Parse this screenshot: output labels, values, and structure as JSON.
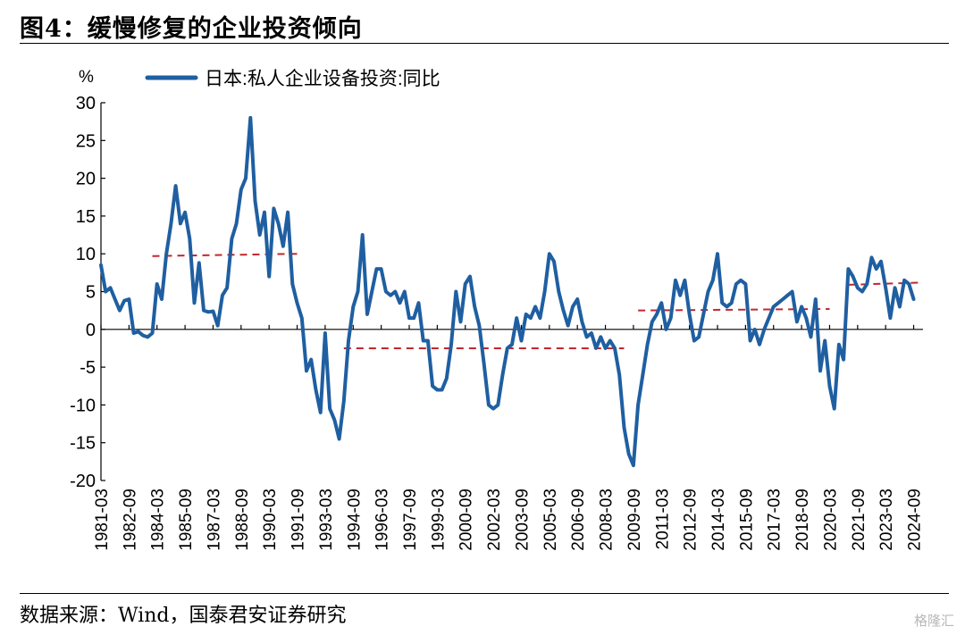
{
  "header": {
    "title": "图4：缓慢修复的企业投资倾向"
  },
  "footer": {
    "source": "数据来源：Wind，国泰君安证券研究"
  },
  "watermark": "格隆汇",
  "colors": {
    "series": "#1f5fa1",
    "trend": "#c0282d"
  },
  "chart_data": {
    "type": "line",
    "unit_label": "%",
    "legend": [
      "日本:私人企业设备投资:同比"
    ],
    "legend_position": "top-left",
    "grid": false,
    "ylim": [
      -20,
      30
    ],
    "yticks": [
      30,
      25,
      20,
      15,
      10,
      5,
      0,
      -5,
      -10,
      -15,
      -20
    ],
    "xlim": [
      1981.0,
      2025.0
    ],
    "xticks": [
      "1981-03",
      "1982-09",
      "1984-03",
      "1985-09",
      "1987-03",
      "1988-09",
      "1990-03",
      "1991-09",
      "1993-03",
      "1994-09",
      "1996-03",
      "1997-09",
      "1999-03",
      "2000-09",
      "2002-03",
      "2003-09",
      "2005-03",
      "2006-09",
      "2008-03",
      "2009-09",
      "2011-03",
      "2012-09",
      "2014-03",
      "2015-09",
      "2017-03",
      "2018-09",
      "2020-03",
      "2021-09",
      "2023-03",
      "2024-09"
    ],
    "series": [
      {
        "name": "日本:私人企业设备投资:同比",
        "points": [
          [
            1981.0,
            8.5
          ],
          [
            1981.25,
            5.0
          ],
          [
            1981.5,
            5.5
          ],
          [
            1981.75,
            4.0
          ],
          [
            1982.0,
            2.5
          ],
          [
            1982.25,
            3.8
          ],
          [
            1982.5,
            4.0
          ],
          [
            1982.75,
            -0.5
          ],
          [
            1983.0,
            -0.3
          ],
          [
            1983.25,
            -0.8
          ],
          [
            1983.5,
            -1.0
          ],
          [
            1983.75,
            -0.5
          ],
          [
            1984.0,
            6.0
          ],
          [
            1984.25,
            4.0
          ],
          [
            1984.5,
            10.0
          ],
          [
            1984.75,
            14.0
          ],
          [
            1985.0,
            19.0
          ],
          [
            1985.25,
            14.0
          ],
          [
            1985.5,
            15.5
          ],
          [
            1985.75,
            12.0
          ],
          [
            1986.0,
            3.5
          ],
          [
            1986.25,
            8.8
          ],
          [
            1986.5,
            2.5
          ],
          [
            1986.75,
            2.3
          ],
          [
            1987.0,
            2.4
          ],
          [
            1987.25,
            0.5
          ],
          [
            1987.5,
            4.5
          ],
          [
            1987.75,
            5.5
          ],
          [
            1988.0,
            12.0
          ],
          [
            1988.25,
            14.0
          ],
          [
            1988.5,
            18.5
          ],
          [
            1988.75,
            20.0
          ],
          [
            1989.0,
            28.0
          ],
          [
            1989.25,
            17.0
          ],
          [
            1989.5,
            12.5
          ],
          [
            1989.75,
            15.5
          ],
          [
            1990.0,
            7.0
          ],
          [
            1990.25,
            16.0
          ],
          [
            1990.5,
            14.0
          ],
          [
            1990.75,
            11.0
          ],
          [
            1991.0,
            15.5
          ],
          [
            1991.25,
            6.0
          ],
          [
            1991.5,
            3.5
          ],
          [
            1991.75,
            1.5
          ],
          [
            1992.0,
            -5.5
          ],
          [
            1992.25,
            -4.0
          ],
          [
            1992.5,
            -8.0
          ],
          [
            1992.75,
            -11.0
          ],
          [
            1993.0,
            -0.5
          ],
          [
            1993.25,
            -10.5
          ],
          [
            1993.5,
            -12.0
          ],
          [
            1993.75,
            -14.5
          ],
          [
            1994.0,
            -9.5
          ],
          [
            1994.25,
            -1.5
          ],
          [
            1994.5,
            3.0
          ],
          [
            1994.75,
            5.0
          ],
          [
            1995.0,
            12.5
          ],
          [
            1995.25,
            2.0
          ],
          [
            1995.5,
            5.0
          ],
          [
            1995.75,
            8.0
          ],
          [
            1996.0,
            8.0
          ],
          [
            1996.25,
            5.0
          ],
          [
            1996.5,
            4.5
          ],
          [
            1996.75,
            5.0
          ],
          [
            1997.0,
            3.5
          ],
          [
            1997.25,
            5.0
          ],
          [
            1997.5,
            1.5
          ],
          [
            1997.75,
            1.5
          ],
          [
            1998.0,
            3.5
          ],
          [
            1998.25,
            -1.5
          ],
          [
            1998.5,
            -1.5
          ],
          [
            1998.75,
            -7.5
          ],
          [
            1999.0,
            -8.0
          ],
          [
            1999.25,
            -8.0
          ],
          [
            1999.5,
            -6.5
          ],
          [
            1999.75,
            -2.0
          ],
          [
            2000.0,
            5.0
          ],
          [
            2000.25,
            1.0
          ],
          [
            2000.5,
            6.0
          ],
          [
            2000.75,
            7.0
          ],
          [
            2001.0,
            3.0
          ],
          [
            2001.25,
            0.5
          ],
          [
            2001.5,
            -4.5
          ],
          [
            2001.75,
            -10.0
          ],
          [
            2002.0,
            -10.5
          ],
          [
            2002.25,
            -10.0
          ],
          [
            2002.5,
            -6.0
          ],
          [
            2002.75,
            -2.5
          ],
          [
            2003.0,
            -2.0
          ],
          [
            2003.25,
            1.5
          ],
          [
            2003.5,
            -1.5
          ],
          [
            2003.75,
            2.0
          ],
          [
            2004.0,
            1.5
          ],
          [
            2004.25,
            3.0
          ],
          [
            2004.5,
            1.5
          ],
          [
            2004.75,
            5.0
          ],
          [
            2005.0,
            10.0
          ],
          [
            2005.25,
            9.0
          ],
          [
            2005.5,
            5.0
          ],
          [
            2005.75,
            2.5
          ],
          [
            2006.0,
            0.5
          ],
          [
            2006.25,
            3.0
          ],
          [
            2006.5,
            4.0
          ],
          [
            2006.75,
            1.0
          ],
          [
            2007.0,
            -1.0
          ],
          [
            2007.25,
            -0.5
          ],
          [
            2007.5,
            -2.5
          ],
          [
            2007.75,
            -1.0
          ],
          [
            2008.0,
            -2.5
          ],
          [
            2008.25,
            -1.5
          ],
          [
            2008.5,
            -2.5
          ],
          [
            2008.75,
            -6.0
          ],
          [
            2009.0,
            -13.0
          ],
          [
            2009.25,
            -16.5
          ],
          [
            2009.5,
            -18.0
          ],
          [
            2009.75,
            -10.0
          ],
          [
            2010.0,
            -6.0
          ],
          [
            2010.25,
            -2.0
          ],
          [
            2010.5,
            1.0
          ],
          [
            2010.75,
            2.0
          ],
          [
            2011.0,
            3.5
          ],
          [
            2011.25,
            0.0
          ],
          [
            2011.5,
            1.5
          ],
          [
            2011.75,
            6.5
          ],
          [
            2012.0,
            4.5
          ],
          [
            2012.25,
            6.5
          ],
          [
            2012.5,
            2.0
          ],
          [
            2012.75,
            -1.5
          ],
          [
            2013.0,
            -1.0
          ],
          [
            2013.25,
            2.0
          ],
          [
            2013.5,
            5.0
          ],
          [
            2013.75,
            6.5
          ],
          [
            2014.0,
            10.0
          ],
          [
            2014.25,
            3.5
          ],
          [
            2014.5,
            3.0
          ],
          [
            2014.75,
            3.5
          ],
          [
            2015.0,
            6.0
          ],
          [
            2015.25,
            6.5
          ],
          [
            2015.5,
            6.0
          ],
          [
            2015.75,
            -1.5
          ],
          [
            2016.0,
            0.0
          ],
          [
            2016.25,
            -2.0
          ],
          [
            2016.5,
            0.0
          ],
          [
            2016.75,
            1.5
          ],
          [
            2017.0,
            3.0
          ],
          [
            2017.25,
            3.5
          ],
          [
            2017.5,
            4.0
          ],
          [
            2017.75,
            4.5
          ],
          [
            2018.0,
            5.0
          ],
          [
            2018.25,
            1.0
          ],
          [
            2018.5,
            3.0
          ],
          [
            2018.75,
            1.5
          ],
          [
            2019.0,
            -1.0
          ],
          [
            2019.25,
            4.0
          ],
          [
            2019.5,
            -5.5
          ],
          [
            2019.75,
            -1.5
          ],
          [
            2020.0,
            -7.5
          ],
          [
            2020.25,
            -10.5
          ],
          [
            2020.5,
            -2.0
          ],
          [
            2020.75,
            -4.0
          ],
          [
            2021.0,
            8.0
          ],
          [
            2021.25,
            7.0
          ],
          [
            2021.5,
            5.5
          ],
          [
            2021.75,
            5.0
          ],
          [
            2022.0,
            6.0
          ],
          [
            2022.25,
            9.5
          ],
          [
            2022.5,
            8.0
          ],
          [
            2022.75,
            9.0
          ],
          [
            2023.0,
            5.5
          ],
          [
            2023.25,
            1.5
          ],
          [
            2023.5,
            5.5
          ],
          [
            2023.75,
            3.0
          ],
          [
            2024.0,
            6.5
          ],
          [
            2024.25,
            6.0
          ],
          [
            2024.5,
            4.0
          ]
        ]
      }
    ],
    "trend_segments": [
      {
        "x": [
          1983.75,
          1991.5
        ],
        "y": [
          9.7,
          10.0
        ]
      },
      {
        "x": [
          1994.0,
          2009.0
        ],
        "y": [
          -2.5,
          -2.5
        ]
      },
      {
        "x": [
          2009.75,
          2020.0
        ],
        "y": [
          2.5,
          2.7
        ]
      },
      {
        "x": [
          2021.0,
          2025.0
        ],
        "y": [
          5.9,
          6.2
        ]
      }
    ]
  }
}
